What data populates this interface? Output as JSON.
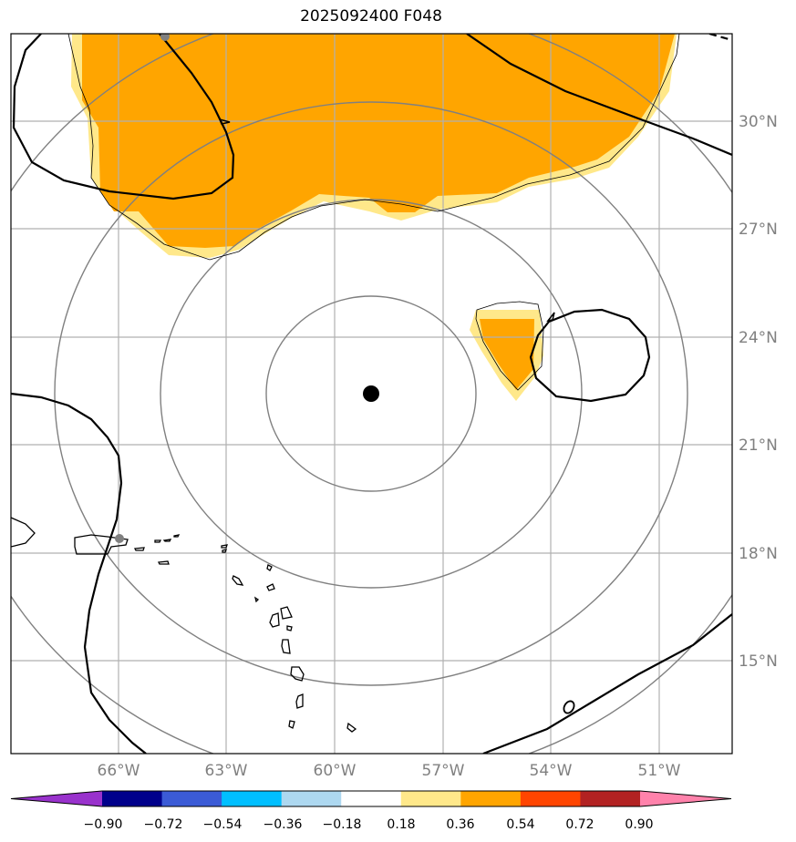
{
  "title": "2025092400 F048",
  "map": {
    "lat_labels": [
      "30°N",
      "27°N",
      "24°N",
      "21°N",
      "18°N",
      "15°N"
    ],
    "lon_labels": [
      "66°W",
      "63°W",
      "60°W",
      "57°W",
      "54°W",
      "51°W"
    ],
    "center_marker": {
      "lat": "22.4°N",
      "lon": "59°W"
    },
    "range_rings": 4,
    "gridlines": true
  },
  "colorbar": {
    "labels": [
      "−0.90",
      "−0.72",
      "−0.54",
      "−0.36",
      "−0.18",
      "0.18",
      "0.36",
      "0.54",
      "0.72",
      "0.90"
    ],
    "colors": [
      "#9932cc",
      "#00008b",
      "#3b5bd6",
      "#00bfff",
      "#add8f0",
      "#ffffff",
      "#ffe88a",
      "#ffa500",
      "#ff4500",
      "#b22222",
      "#ff82ab"
    ]
  }
}
